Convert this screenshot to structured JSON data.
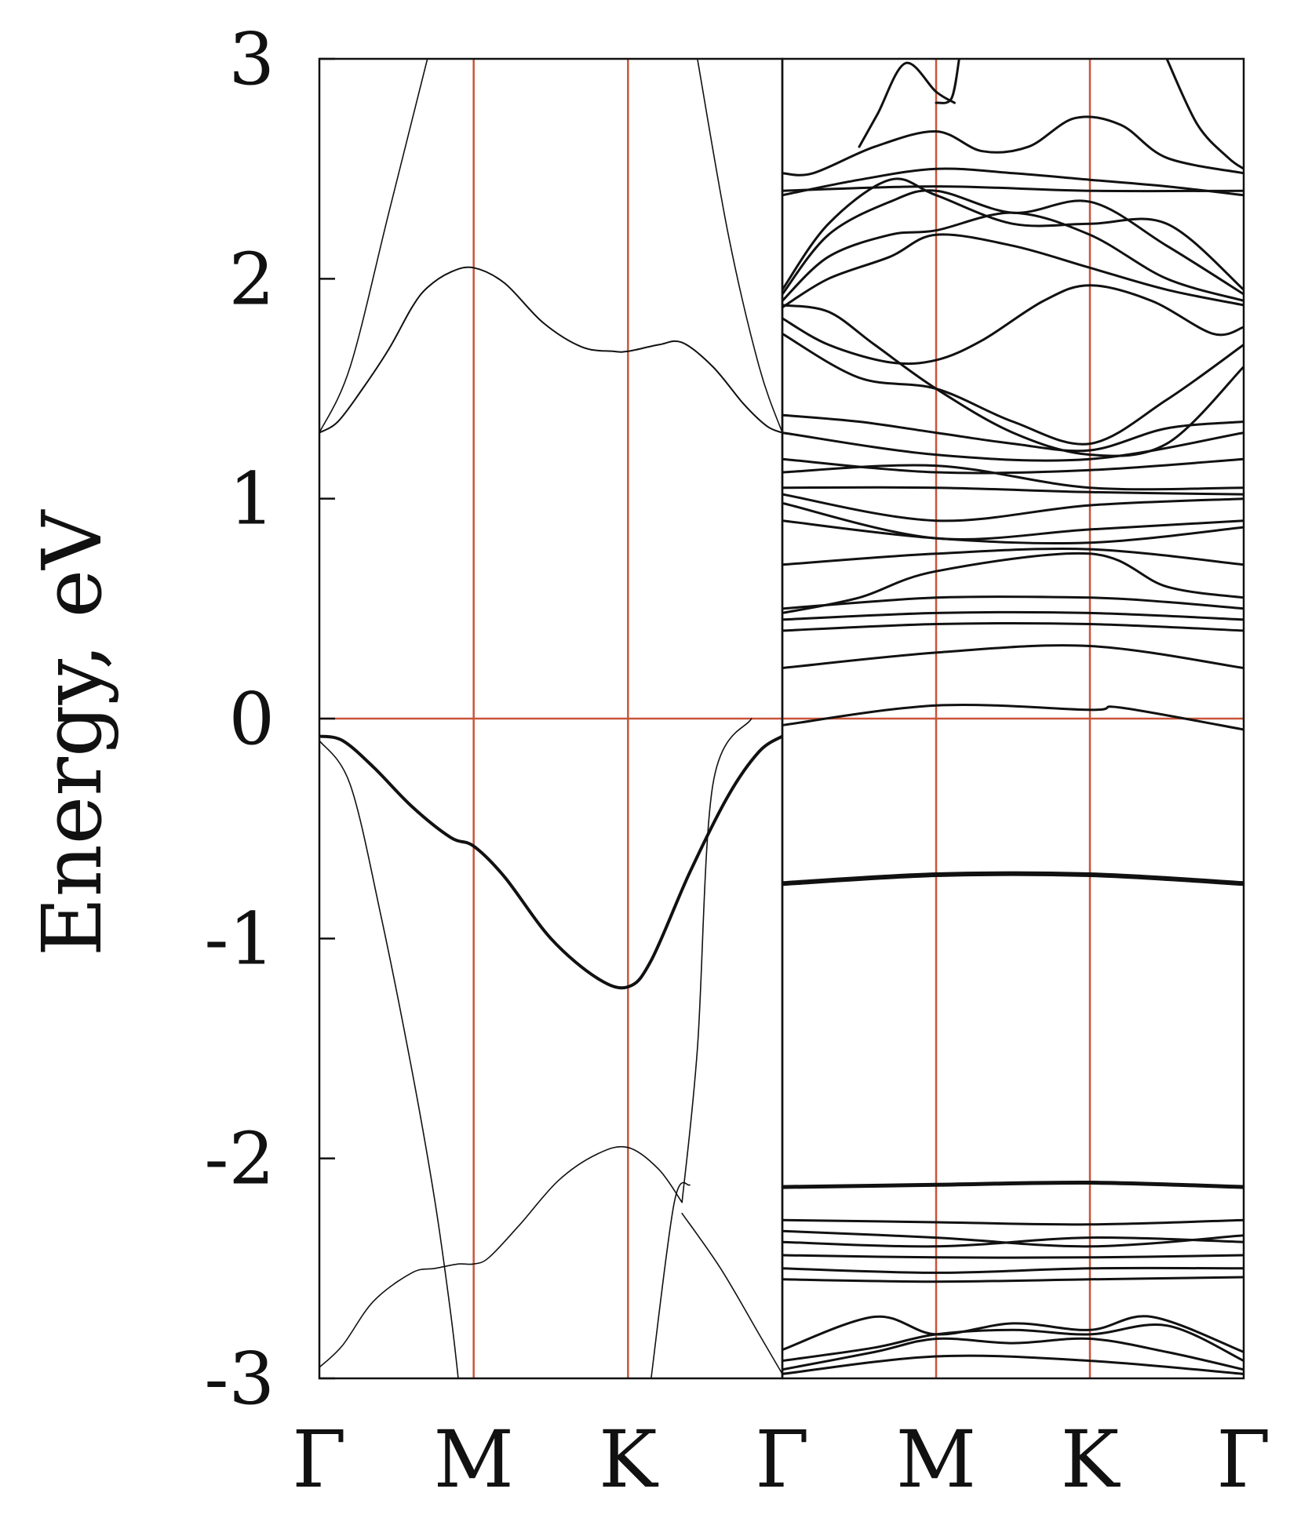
{
  "chart_data": [
    {
      "type": "line",
      "title": "",
      "xlabel": "",
      "ylabel": "Energy, eV",
      "ylim": [
        -3,
        3
      ],
      "yticks": [
        3,
        2,
        1,
        0,
        -1,
        -2,
        -3
      ],
      "ytick_labels": [
        "3",
        "2",
        "1",
        "0",
        "-1",
        "-2",
        "-3"
      ],
      "xlim": [
        0,
        3
      ],
      "xticks": [
        0,
        1,
        2,
        3
      ],
      "xtick_labels": [
        "Γ",
        "M",
        "K",
        "Γ"
      ],
      "reference_lines": {
        "vertical": [
          1,
          2
        ],
        "horizontal": [
          0
        ],
        "color": "#c8553a"
      },
      "line_color": "#111111",
      "series": [
        {
          "width": 4.0,
          "x": [
            0,
            0.15,
            0.35,
            0.6,
            0.85,
            1.0,
            1.2,
            1.5,
            1.8,
            2.0,
            2.15,
            2.4,
            2.65,
            2.85,
            3.0
          ],
          "y": [
            -0.08,
            -0.1,
            -0.22,
            -0.4,
            -0.54,
            -0.58,
            -0.72,
            -1.0,
            -1.18,
            -1.22,
            -1.1,
            -0.7,
            -0.35,
            -0.15,
            -0.08
          ]
        },
        {
          "width": 2.0,
          "x": [
            0,
            0.12,
            0.28,
            0.45,
            0.6,
            0.7,
            0.85,
            1.0,
            1.2,
            1.45,
            1.7,
            1.9,
            2.0,
            2.2,
            2.35,
            2.55,
            2.75,
            2.9,
            3.0
          ],
          "y": [
            1.3,
            1.35,
            1.5,
            1.68,
            1.87,
            1.96,
            2.03,
            2.05,
            1.98,
            1.8,
            1.69,
            1.67,
            1.67,
            1.7,
            1.71,
            1.6,
            1.43,
            1.33,
            1.3
          ]
        },
        {
          "width": 1.6,
          "x": [
            0,
            0.2,
            0.45,
            0.7
          ],
          "y": [
            1.3,
            1.6,
            2.3,
            3.0
          ]
        },
        {
          "width": 1.6,
          "x": [
            2.45,
            2.65,
            2.85,
            3.0
          ],
          "y": [
            3.0,
            2.2,
            1.6,
            1.3
          ]
        },
        {
          "width": 1.6,
          "x": [
            0,
            0.2,
            0.4,
            0.6,
            0.75,
            0.85,
            0.9
          ],
          "y": [
            -0.1,
            -0.3,
            -0.9,
            -1.6,
            -2.2,
            -2.7,
            -3.0
          ]
        },
        {
          "width": 1.6,
          "x": [
            2.15,
            2.3,
            2.4
          ],
          "y": [
            -3.0,
            -2.2,
            -2.12
          ]
        },
        {
          "width": 1.6,
          "x": [
            0,
            0.15,
            0.35,
            0.6,
            0.75,
            0.9,
            1.0,
            1.1,
            1.3,
            1.55,
            1.8,
            2.0,
            2.2,
            2.35
          ],
          "y": [
            -2.95,
            -2.85,
            -2.65,
            -2.52,
            -2.5,
            -2.48,
            -2.48,
            -2.45,
            -2.3,
            -2.1,
            -1.98,
            -1.95,
            -2.05,
            -2.2
          ]
        },
        {
          "width": 1.6,
          "x": [
            2.35,
            2.6,
            2.85,
            3.0
          ],
          "y": [
            -2.25,
            -2.5,
            -2.8,
            -2.98
          ]
        },
        {
          "width": 1.6,
          "x": [
            2.35,
            2.45,
            2.55,
            2.8
          ],
          "y": [
            -2.2,
            -1.5,
            -0.3,
            0.0
          ]
        }
      ]
    },
    {
      "type": "line",
      "title": "",
      "xlabel": "",
      "ylabel": "",
      "ylim": [
        -3,
        3
      ],
      "xlim": [
        0,
        3
      ],
      "xticks": [
        0,
        1,
        2,
        3
      ],
      "xtick_labels": [
        "Γ",
        "M",
        "K",
        "Γ"
      ],
      "reference_lines": {
        "vertical": [
          1,
          2
        ],
        "horizontal": [
          0
        ],
        "color": "#c8553a"
      },
      "line_color": "#111111",
      "series": [
        {
          "width": 3.0,
          "x": [
            0,
            1.0,
            2.0,
            2.2,
            3.0
          ],
          "y": [
            -0.03,
            0.06,
            0.04,
            0.05,
            -0.05
          ]
        },
        {
          "width": 6.0,
          "x": [
            0,
            1.0,
            2.0,
            3.0
          ],
          "y": [
            -0.75,
            -0.71,
            -0.71,
            -0.75
          ]
        },
        {
          "width": 5.0,
          "x": [
            0,
            1.0,
            2.0,
            3.0
          ],
          "y": [
            -2.13,
            -2.12,
            -2.11,
            -2.13
          ]
        },
        {
          "width": 3.0,
          "x": [
            0,
            1.0,
            2.0,
            3.0
          ],
          "y": [
            -2.28,
            -2.29,
            -2.3,
            -2.28
          ]
        },
        {
          "width": 3.0,
          "x": [
            0,
            1.0,
            2.0,
            3.0
          ],
          "y": [
            -2.33,
            -2.36,
            -2.4,
            -2.35
          ]
        },
        {
          "width": 3.0,
          "x": [
            0,
            1.0,
            2.0,
            3.0
          ],
          "y": [
            -2.38,
            -2.4,
            -2.36,
            -2.38
          ]
        },
        {
          "width": 3.0,
          "x": [
            0,
            1.0,
            2.0,
            3.0
          ],
          "y": [
            -2.44,
            -2.45,
            -2.45,
            -2.44
          ]
        },
        {
          "width": 3.0,
          "x": [
            0,
            1.0,
            2.0,
            3.0
          ],
          "y": [
            -2.5,
            -2.52,
            -2.5,
            -2.5
          ]
        },
        {
          "width": 3.0,
          "x": [
            0,
            1.0,
            2.0,
            3.0
          ],
          "y": [
            -2.55,
            -2.56,
            -2.55,
            -2.54
          ]
        },
        {
          "width": 3.0,
          "x": [
            0,
            0.6,
            1.0,
            1.5,
            2.0,
            2.4,
            3.0
          ],
          "y": [
            -2.87,
            -2.72,
            -2.8,
            -2.75,
            -2.78,
            -2.72,
            -2.88
          ]
        },
        {
          "width": 3.0,
          "x": [
            0,
            0.6,
            1.0,
            1.5,
            2.0,
            2.5,
            3.0
          ],
          "y": [
            -2.92,
            -2.86,
            -2.8,
            -2.78,
            -2.8,
            -2.76,
            -2.92
          ]
        },
        {
          "width": 3.0,
          "x": [
            0,
            0.6,
            1.0,
            1.5,
            2.0,
            2.5,
            3.0
          ],
          "y": [
            -2.96,
            -2.88,
            -2.82,
            -2.84,
            -2.82,
            -2.88,
            -2.96
          ]
        },
        {
          "width": 3.0,
          "x": [
            0,
            1.0,
            2.0,
            3.0
          ],
          "y": [
            -2.98,
            -2.9,
            -2.92,
            -2.98
          ]
        },
        {
          "width": 3.0,
          "x": [
            0,
            1.0,
            2.0,
            3.0
          ],
          "y": [
            0.23,
            0.3,
            0.33,
            0.23
          ]
        },
        {
          "width": 3.0,
          "x": [
            0,
            1.0,
            2.0,
            3.0
          ],
          "y": [
            0.4,
            0.43,
            0.43,
            0.4
          ]
        },
        {
          "width": 3.0,
          "x": [
            0,
            1.0,
            2.0,
            3.0
          ],
          "y": [
            0.45,
            0.48,
            0.48,
            0.45
          ]
        },
        {
          "width": 3.0,
          "x": [
            0,
            1.0,
            2.0,
            2.5,
            3.0
          ],
          "y": [
            0.5,
            0.55,
            0.55,
            0.53,
            0.5
          ]
        },
        {
          "width": 3.0,
          "x": [
            0,
            0.5,
            1.0,
            2.0,
            2.5,
            3.0
          ],
          "y": [
            0.48,
            0.55,
            0.67,
            0.75,
            0.6,
            0.55
          ]
        },
        {
          "width": 3.0,
          "x": [
            0,
            1.0,
            2.0,
            3.0
          ],
          "y": [
            0.7,
            0.75,
            0.77,
            0.7
          ]
        },
        {
          "width": 3.0,
          "x": [
            0,
            1.0,
            2.0,
            3.0
          ],
          "y": [
            0.9,
            0.82,
            0.8,
            0.87
          ]
        },
        {
          "width": 3.0,
          "x": [
            0,
            1.0,
            2.0,
            3.0
          ],
          "y": [
            0.98,
            0.82,
            0.86,
            0.9
          ]
        },
        {
          "width": 3.0,
          "x": [
            0,
            1.0,
            2.0,
            3.0
          ],
          "y": [
            1.02,
            0.9,
            0.97,
            1.0
          ]
        },
        {
          "width": 3.0,
          "x": [
            0,
            1.0,
            2.0,
            3.0
          ],
          "y": [
            1.05,
            1.05,
            1.03,
            1.02
          ]
        },
        {
          "width": 3.0,
          "x": [
            0,
            1.0,
            2.0,
            3.0
          ],
          "y": [
            1.12,
            1.15,
            1.05,
            1.05
          ]
        },
        {
          "width": 3.0,
          "x": [
            0,
            1.0,
            2.0,
            3.0
          ],
          "y": [
            1.18,
            1.12,
            1.13,
            1.18
          ]
        },
        {
          "width": 3.0,
          "x": [
            0,
            1.0,
            2.0,
            3.0
          ],
          "y": [
            1.3,
            1.2,
            1.18,
            1.3
          ]
        },
        {
          "width": 3.0,
          "x": [
            0,
            0.5,
            1.0,
            1.5,
            2.0,
            2.5,
            3.0
          ],
          "y": [
            1.38,
            1.35,
            1.3,
            1.25,
            1.22,
            1.32,
            1.35
          ]
        },
        {
          "width": 3.0,
          "x": [
            0,
            0.5,
            1.0,
            1.5,
            2.0,
            2.5,
            3.0
          ],
          "y": [
            1.75,
            1.55,
            1.5,
            1.35,
            1.25,
            1.45,
            1.7
          ]
        },
        {
          "width": 3.0,
          "x": [
            0,
            0.3,
            0.7,
            1.0,
            1.3,
            1.7,
            2.0,
            2.4,
            2.8,
            3.0
          ],
          "y": [
            1.82,
            1.7,
            1.62,
            1.63,
            1.72,
            1.9,
            1.97,
            1.9,
            1.75,
            1.78
          ]
        },
        {
          "width": 3.0,
          "x": [
            0,
            0.3,
            0.6,
            1.0,
            1.5,
            2.0,
            2.5,
            3.0
          ],
          "y": [
            1.88,
            1.85,
            1.7,
            1.5,
            1.3,
            1.2,
            1.25,
            1.6
          ]
        },
        {
          "width": 3.0,
          "x": [
            0,
            0.3,
            0.7,
            1.0,
            1.5,
            2.0,
            2.5,
            3.0
          ],
          "y": [
            1.87,
            2.0,
            2.1,
            2.2,
            2.15,
            2.05,
            1.95,
            1.88
          ]
        },
        {
          "width": 3.0,
          "x": [
            0,
            0.3,
            0.7,
            1.0,
            1.5,
            2.0,
            2.5,
            3.0
          ],
          "y": [
            1.9,
            2.1,
            2.2,
            2.22,
            2.3,
            2.2,
            2.0,
            1.9
          ]
        },
        {
          "width": 3.0,
          "x": [
            0,
            0.3,
            0.7,
            1.0,
            1.5,
            2.0,
            2.5,
            3.0
          ],
          "y": [
            1.93,
            2.2,
            2.35,
            2.4,
            2.3,
            2.35,
            2.15,
            1.93
          ]
        },
        {
          "width": 3.0,
          "x": [
            0,
            0.3,
            0.7,
            1.0,
            1.5,
            2.0,
            2.5,
            3.0
          ],
          "y": [
            1.95,
            2.25,
            2.45,
            2.38,
            2.25,
            2.25,
            2.25,
            1.95
          ]
        },
        {
          "width": 3.0,
          "x": [
            0,
            0.5,
            1.0,
            1.5,
            2.0,
            2.5,
            3.0
          ],
          "y": [
            2.38,
            2.45,
            2.5,
            2.48,
            2.45,
            2.42,
            2.38
          ]
        },
        {
          "width": 3.0,
          "x": [
            0,
            0.2,
            0.6,
            1.0,
            1.3,
            1.6,
            1.9,
            2.2,
            2.5,
            3.0
          ],
          "y": [
            2.48,
            2.48,
            2.6,
            2.67,
            2.58,
            2.6,
            2.73,
            2.7,
            2.55,
            2.48
          ]
        },
        {
          "width": 3.0,
          "x": [
            0,
            1.0,
            2.0,
            3.0
          ],
          "y": [
            2.4,
            2.42,
            2.4,
            2.4
          ]
        },
        {
          "width": 3.0,
          "x": [
            0.5,
            0.62,
            0.8,
            1.0,
            1.12
          ],
          "y": [
            2.6,
            2.75,
            2.98,
            2.85,
            2.8
          ]
        },
        {
          "width": 3.0,
          "x": [
            1.0,
            1.1,
            1.15
          ],
          "y": [
            2.8,
            2.82,
            3.0
          ]
        },
        {
          "width": 3.0,
          "x": [
            2.5,
            2.7,
            2.9,
            3.0
          ],
          "y": [
            3.0,
            2.7,
            2.55,
            2.5
          ]
        }
      ]
    }
  ]
}
